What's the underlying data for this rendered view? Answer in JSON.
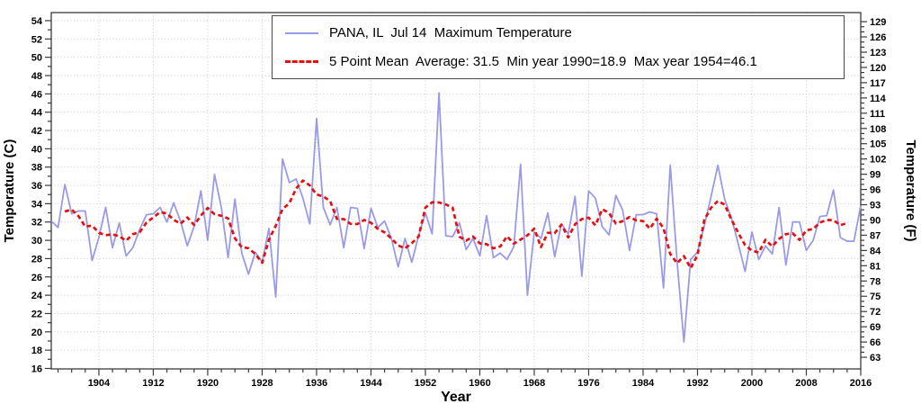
{
  "chart_data": {
    "type": "line",
    "title": "PANA, IL Jul 14 Maximum Temperature",
    "x": [
      1897,
      1898,
      1899,
      1900,
      1901,
      1902,
      1903,
      1904,
      1905,
      1906,
      1907,
      1908,
      1909,
      1910,
      1911,
      1912,
      1913,
      1914,
      1915,
      1916,
      1917,
      1918,
      1919,
      1920,
      1921,
      1922,
      1923,
      1924,
      1925,
      1926,
      1927,
      1928,
      1929,
      1930,
      1931,
      1932,
      1933,
      1934,
      1935,
      1936,
      1937,
      1938,
      1939,
      1940,
      1941,
      1942,
      1943,
      1944,
      1945,
      1946,
      1947,
      1948,
      1949,
      1950,
      1951,
      1952,
      1953,
      1954,
      1955,
      1956,
      1957,
      1958,
      1959,
      1960,
      1961,
      1962,
      1963,
      1964,
      1965,
      1966,
      1967,
      1968,
      1969,
      1970,
      1971,
      1972,
      1973,
      1974,
      1975,
      1976,
      1977,
      1978,
      1979,
      1980,
      1981,
      1982,
      1983,
      1984,
      1985,
      1986,
      1987,
      1988,
      1989,
      1990,
      1991,
      1992,
      1993,
      1994,
      1995,
      1996,
      1997,
      1998,
      1999,
      2000,
      2001,
      2002,
      2003,
      2004,
      2005,
      2006,
      2007,
      2008,
      2009,
      2010,
      2011,
      2012,
      2013,
      2014,
      2015,
      2016
    ],
    "series": [
      {
        "name": "PANA, IL  Jul 14  Maximum Temperature",
        "color": "#9a9ae8",
        "style": "solid",
        "values": [
          32.1,
          31.4,
          36.1,
          32.9,
          33.2,
          33.2,
          27.8,
          30.3,
          33.6,
          29.2,
          31.9,
          28.3,
          29.2,
          31.2,
          32.8,
          32.9,
          33.6,
          32.0,
          34.1,
          32.1,
          29.4,
          31.5,
          35.4,
          30.0,
          37.2,
          33.6,
          28.1,
          34.5,
          28.6,
          26.3,
          28.7,
          27.6,
          31.3,
          23.8,
          38.9,
          36.3,
          36.7,
          34.6,
          31.8,
          43.3,
          33.6,
          31.7,
          33.6,
          29.2,
          33.6,
          33.5,
          29.1,
          33.5,
          31.4,
          32.1,
          30.2,
          27.1,
          30.2,
          27.6,
          30.5,
          33.0,
          30.7,
          46.1,
          30.5,
          30.4,
          31.9,
          29.0,
          30.2,
          28.3,
          32.7,
          28.1,
          28.6,
          27.9,
          29.3,
          38.3,
          24.0,
          30.9,
          30.2,
          33.0,
          28.2,
          31.8,
          30.7,
          34.8,
          26.1,
          35.4,
          34.6,
          31.5,
          30.6,
          34.9,
          33.3,
          28.9,
          32.8,
          32.8,
          33.1,
          32.9,
          24.8,
          38.2,
          27.7,
          18.9,
          27.9,
          28.7,
          31.6,
          34.8,
          38.2,
          34.5,
          32.4,
          29.6,
          26.6,
          30.9,
          27.9,
          29.4,
          28.5,
          33.6,
          27.3,
          32.0,
          32.0,
          28.9,
          30.0,
          32.6,
          32.7,
          35.5,
          30.3,
          29.9,
          29.9,
          33.8
        ]
      },
      {
        "name": "5 Point Mean",
        "color": "#e60f0f",
        "style": "dashed",
        "derived": "centered 5-point running mean of series 0"
      }
    ],
    "legend": {
      "position": "top-center",
      "line1": "PANA, IL  Jul 14  Maximum Temperature",
      "line2": "5 Point Mean  Average: 31.5  Min year 1990=18.9  Max year 1954=46.1"
    },
    "stats": {
      "average": 31.5,
      "min_year": 1990,
      "min_value": 18.9,
      "max_year": 1954,
      "max_value": 46.1
    },
    "axes": {
      "left": {
        "label": "Temperature (C)",
        "min": 16,
        "max": 54,
        "major_step": 2,
        "minor_step": 1
      },
      "right": {
        "label": "Temperature (F)",
        "min": 63,
        "max": 129,
        "major_step": 3,
        "minor_step": 1
      },
      "bottom": {
        "label": "Year",
        "first_major": 1904,
        "last_major": 2016,
        "major_step": 8,
        "minor_step": 2
      }
    },
    "x_range": [
      1897,
      2016
    ],
    "grid": true,
    "colors": {
      "frame": "#3a3a3a",
      "grid": "#c9c9c9",
      "text": "#000000",
      "background": "#ffffff"
    }
  }
}
